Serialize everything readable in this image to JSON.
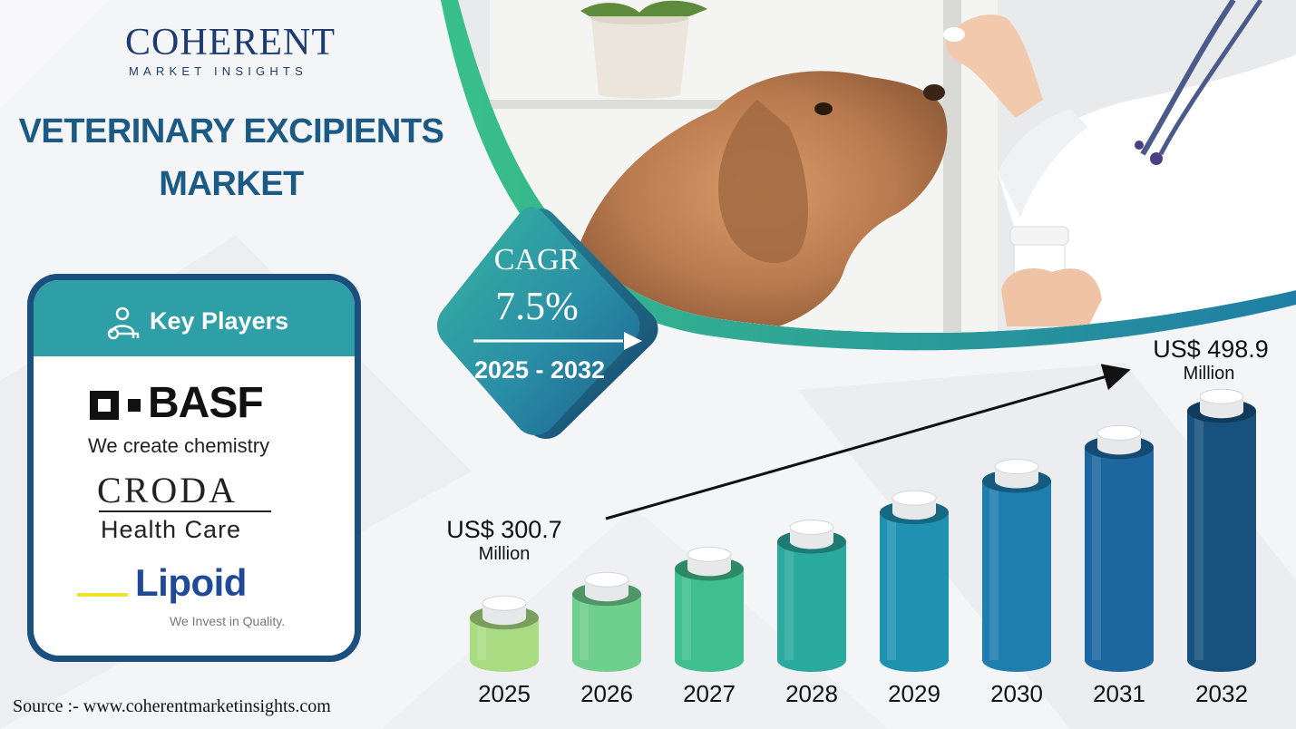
{
  "brand": {
    "name": "COHERENT",
    "tagline": "MARKET INSIGHTS"
  },
  "title": {
    "line1": "VETERINARY EXCIPIENTS",
    "line2": "MARKET"
  },
  "cagr": {
    "label": "CAGR",
    "value": "7.5%",
    "period": "2025 - 2032"
  },
  "key_players": {
    "heading": "Key Players",
    "basf_name": "BASF",
    "basf_tagline": "We create chemistry",
    "croda_name": "CRODA",
    "croda_sub": "Health Care",
    "lipoid_name": "Lipoid",
    "lipoid_tagline": "We Invest in Quality."
  },
  "annotations": {
    "start_value": "US$ 300.7",
    "start_unit": "Million",
    "end_value": "US$ 498.9",
    "end_unit": "Million"
  },
  "source": "Source :- www.coherentmarketinsights.com",
  "colors": {
    "title_blue": "#1b5a84",
    "teal": "#2e9ea7",
    "bar_colors": [
      "#a9dc82",
      "#6fcf8d",
      "#3fbf8f",
      "#2aa99f",
      "#1f92b2",
      "#1f7eb0",
      "#1d67a0",
      "#17527f"
    ]
  },
  "chart_data": {
    "type": "bar",
    "categories": [
      "2025",
      "2026",
      "2027",
      "2028",
      "2029",
      "2030",
      "2031",
      "2032"
    ],
    "values": [
      300.7,
      323.3,
      347.5,
      373.5,
      401.6,
      431.7,
      464.0,
      498.9
    ],
    "title": "",
    "xlabel": "",
    "ylabel": "",
    "unit": "US$ Million",
    "ylim": [
      260,
      500
    ]
  }
}
